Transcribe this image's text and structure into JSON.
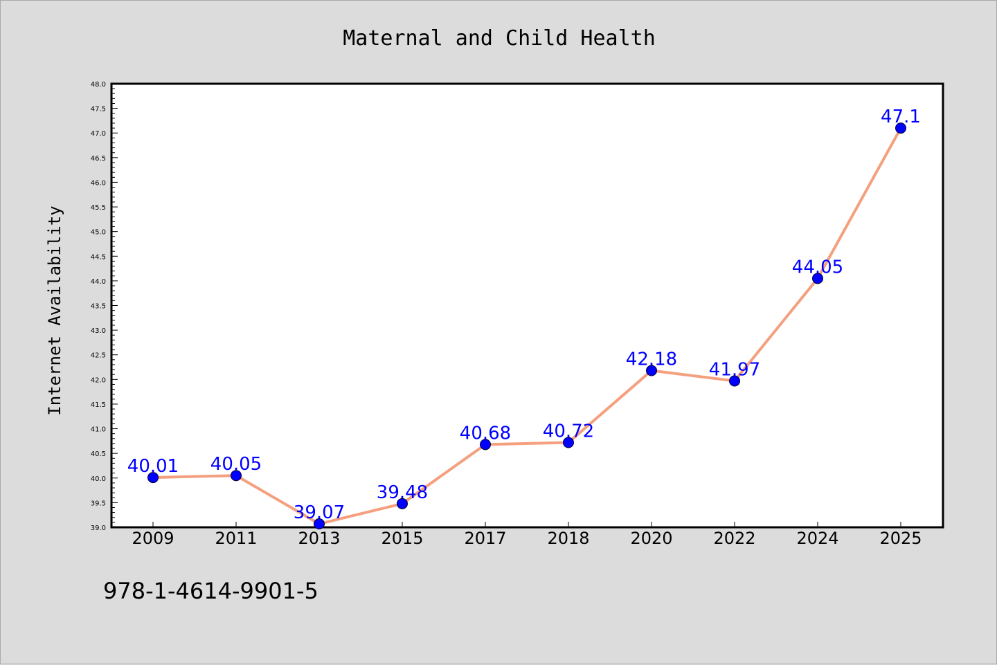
{
  "chart_data": {
    "type": "line",
    "title": "Maternal and Child Health",
    "xlabel": "",
    "ylabel": "Internet Availability",
    "categories": [
      "2009",
      "2011",
      "2013",
      "2015",
      "2017",
      "2018",
      "2020",
      "2022",
      "2024",
      "2025"
    ],
    "series": [
      {
        "values": [
          40.01,
          40.05,
          39.07,
          39.48,
          40.68,
          40.72,
          42.18,
          41.97,
          44.05,
          47.1
        ],
        "labels": [
          "40.01",
          "40.05",
          "39.07",
          "39.48",
          "40.68",
          "40.72",
          "42.18",
          "41.97",
          "44.05",
          "47.1"
        ],
        "line_color": "#f4a07e",
        "marker_color": "#0000ff"
      }
    ],
    "ylim": [
      39.0,
      48.0
    ],
    "yticks": [
      "39.0",
      "39.5",
      "40.0",
      "40.5",
      "41.0",
      "41.5",
      "42.0",
      "42.5",
      "43.0",
      "43.5",
      "44.0",
      "44.5",
      "45.0",
      "45.5",
      "46.0",
      "46.5",
      "47.0",
      "47.5",
      "48.0"
    ],
    "grid": false,
    "legend": "none"
  },
  "footer": {
    "isbn": "978-1-4614-9901-5"
  },
  "colors": {
    "background": "#dcdcdc",
    "plot_background": "#ffffff",
    "axis": "#000000",
    "label_text": "#0000ff"
  }
}
